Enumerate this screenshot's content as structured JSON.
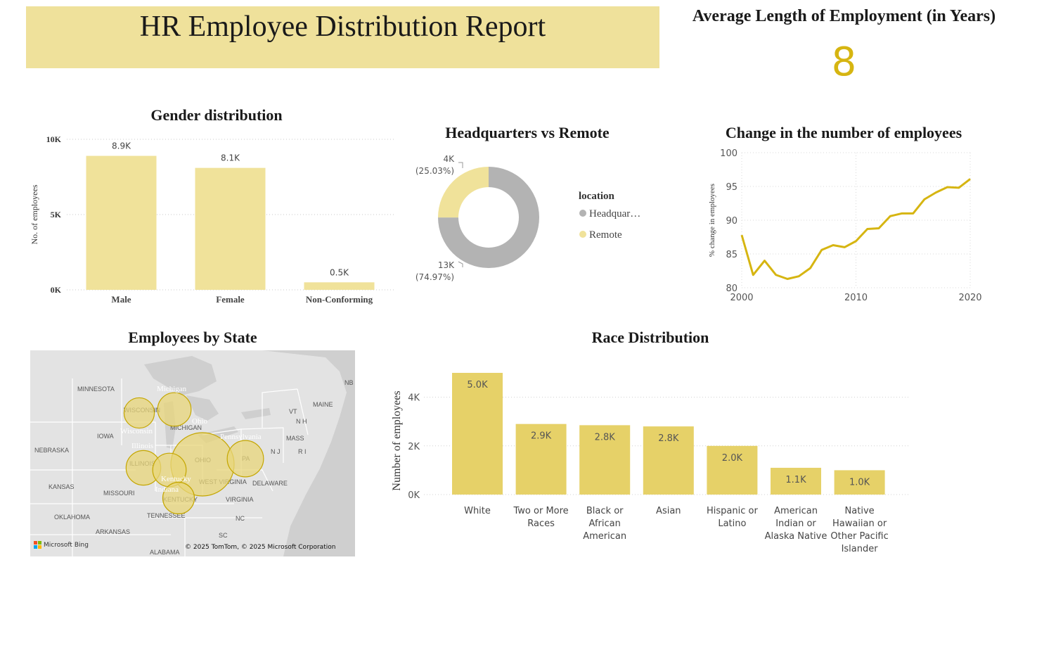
{
  "header": {
    "title": "HR Employee Distribution Report"
  },
  "kpi": {
    "title": "Average Length of Employment (in Years)",
    "value": "8"
  },
  "colors": {
    "accent": "#efe19b",
    "bar_light": "#f0e29a",
    "bar_race": "#e6d168",
    "line": "#d6b511",
    "grey": "#b3b3b3",
    "kpi": "#d6b511"
  },
  "gender_chart": {
    "title": "Gender distribution",
    "chart_data": {
      "type": "bar",
      "categories": [
        "Male",
        "Female",
        "Non-Conforming"
      ],
      "values": [
        8900,
        8100,
        500
      ],
      "value_labels": [
        "8.9K",
        "8.1K",
        "0.5K"
      ],
      "ylabel": "No. of employees",
      "yticks": [
        "0K",
        "5K",
        "10K"
      ],
      "ylim": [
        0,
        10000
      ],
      "grid": true
    }
  },
  "location_chart": {
    "title": "Headquarters vs Remote",
    "chart_data": {
      "type": "pie",
      "donut": true,
      "legend_title": "location",
      "legend_position": "right",
      "slices": [
        {
          "name": "Headquar…",
          "value": 13000,
          "label": "13K",
          "pct": "(74.97%)",
          "share": 74.97
        },
        {
          "name": "Remote",
          "value": 4000,
          "label": "4K",
          "pct": "(25.03%)",
          "share": 25.03
        }
      ]
    }
  },
  "change_chart": {
    "title": "Change in the number of employees",
    "chart_data": {
      "type": "line",
      "ylabel": "% change in employees",
      "x": [
        2000,
        2001,
        2002,
        2003,
        2004,
        2005,
        2006,
        2007,
        2008,
        2009,
        2010,
        2011,
        2012,
        2013,
        2014,
        2015,
        2016,
        2017,
        2018,
        2019,
        2020
      ],
      "y": [
        87.8,
        81.9,
        84.0,
        81.9,
        81.3,
        81.7,
        82.9,
        85.6,
        86.3,
        86.0,
        86.9,
        88.7,
        88.8,
        90.6,
        91.0,
        91.0,
        93.1,
        94.1,
        94.9,
        94.8,
        96.1
      ],
      "xticks": [
        "2000",
        "2010",
        "2020"
      ],
      "yticks": [
        "80",
        "85",
        "90",
        "95",
        "100"
      ],
      "xlim": [
        2000,
        2020
      ],
      "ylim": [
        80,
        100
      ],
      "grid": true
    }
  },
  "state_map": {
    "title": "Employees by State",
    "base_labels": [
      "MINNESOTA",
      "WISCONSIN",
      "MICHIGAN",
      "IOWA",
      "NEBRASKA",
      "ILLINOIS",
      "OHIO",
      "PA",
      "KANSAS",
      "MISSOURI",
      "KENTUCKY",
      "WEST VIRGINIA",
      "VIRGINIA",
      "DELAWARE",
      "OKLAHOMA",
      "ARKANSAS",
      "TENNESSEE",
      "NC",
      "SC",
      "ALABAMA",
      "MAINE",
      "VT",
      "N H",
      "MASS",
      "R I",
      "N J",
      "NB"
    ],
    "bubbles": [
      {
        "state": "Ohio",
        "label": "Ohio",
        "size": 1.0
      },
      {
        "state": "Pennsylvania",
        "label": "Pennsylvania",
        "size": 0.33
      },
      {
        "state": "Michigan",
        "label": "Michigan",
        "size": 0.28
      },
      {
        "state": "Wisconsin",
        "label": "Wisconsin",
        "size": 0.23
      },
      {
        "state": "Illinois",
        "label": "Illinois",
        "size": 0.3
      },
      {
        "state": "Indiana",
        "label": "Indiana",
        "size": 0.28
      },
      {
        "state": "Kentucky",
        "label": "Kentucky",
        "size": 0.25
      }
    ],
    "attribution": "© 2025 TomTom, © 2025 Microsoft Corporation",
    "brand": "Microsoft Bing"
  },
  "race_chart": {
    "title": "Race Distribution",
    "chart_data": {
      "type": "bar",
      "categories": [
        [
          "White"
        ],
        [
          "Two or More",
          "Races"
        ],
        [
          "Black or",
          "African",
          "American"
        ],
        [
          "Asian"
        ],
        [
          "Hispanic or",
          "Latino"
        ],
        [
          "American",
          "Indian or",
          "Alaska Native"
        ],
        [
          "Native",
          "Hawaiian or",
          "Other Pacific",
          "Islander"
        ]
      ],
      "values": [
        5000,
        2900,
        2850,
        2800,
        2000,
        1100,
        1000
      ],
      "value_labels": [
        "5.0K",
        "2.9K",
        "2.8K",
        "2.8K",
        "2.0K",
        "1.1K",
        "1.0K"
      ],
      "ylabel": "Number of employees",
      "yticks": [
        "0K",
        "2K",
        "4K"
      ],
      "ylim": [
        0,
        5000
      ],
      "grid": true
    }
  }
}
